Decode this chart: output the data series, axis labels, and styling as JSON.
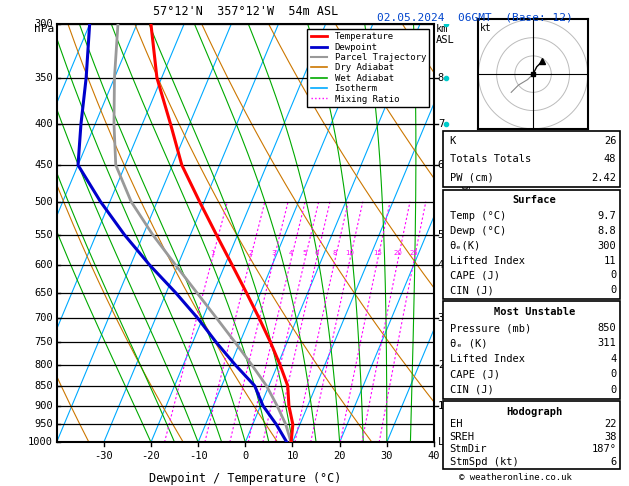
{
  "title_left": "57°12'N  357°12'W  54m ASL",
  "title_right": "02.05.2024  06GMT  (Base: 12)",
  "xlabel": "Dewpoint / Temperature (°C)",
  "ylabel_left": "hPa",
  "ylabel_right_km": "km\nASL",
  "pressure_levels": [
    300,
    350,
    400,
    450,
    500,
    550,
    600,
    650,
    700,
    750,
    800,
    850,
    900,
    950,
    1000
  ],
  "temp_ticks": [
    -30,
    -20,
    -10,
    0,
    10,
    20,
    30,
    40
  ],
  "km_ticks": [
    "8",
    "7",
    "6",
    "5",
    "4",
    "3",
    "2",
    "1"
  ],
  "km_pressures": [
    350,
    400,
    450,
    550,
    600,
    700,
    800,
    900
  ],
  "mixing_ratio_values": [
    1,
    2,
    3,
    4,
    5,
    6,
    8,
    10,
    15,
    20,
    25
  ],
  "temperature_profile": {
    "pressure": [
      1000,
      950,
      900,
      850,
      800,
      750,
      700,
      650,
      600,
      550,
      500,
      450,
      400,
      350,
      300
    ],
    "temp": [
      9.7,
      8.5,
      6.0,
      4.0,
      0.5,
      -3.5,
      -8.0,
      -13.0,
      -18.5,
      -24.5,
      -31.0,
      -38.0,
      -44.0,
      -51.0,
      -57.0
    ]
  },
  "dewpoint_profile": {
    "pressure": [
      1000,
      950,
      900,
      850,
      800,
      750,
      700,
      650,
      600,
      550,
      500,
      450,
      400,
      350,
      300
    ],
    "temp": [
      8.8,
      5.0,
      0.5,
      -3.0,
      -9.0,
      -15.0,
      -21.0,
      -28.0,
      -36.0,
      -44.0,
      -52.0,
      -60.0,
      -63.0,
      -66.0,
      -70.0
    ]
  },
  "parcel_profile": {
    "pressure": [
      1000,
      950,
      900,
      850,
      800,
      750,
      700,
      650,
      600,
      550,
      500,
      450,
      400,
      350,
      300
    ],
    "temp": [
      9.7,
      7.0,
      3.5,
      -0.5,
      -5.5,
      -11.0,
      -17.0,
      -23.5,
      -30.5,
      -38.0,
      -45.5,
      -52.0,
      -56.0,
      -60.0,
      -64.0
    ]
  },
  "colors": {
    "temperature": "#ff0000",
    "dewpoint": "#0000cc",
    "parcel": "#999999",
    "dry_adiabat": "#cc7700",
    "wet_adiabat": "#00aa00",
    "isotherm": "#00aaff",
    "mixing_ratio": "#ff00ff",
    "background": "#ffffff",
    "axes": "#000000"
  },
  "stats": {
    "K": 26,
    "Totals_Totals": 48,
    "PW_cm": 2.42,
    "Surface_Temp": 9.7,
    "Surface_Dewp": 8.8,
    "Surface_theta_e": 300,
    "Surface_LI": 11,
    "Surface_CAPE": 0,
    "Surface_CIN": 0,
    "MU_Pressure": 850,
    "MU_theta_e": 311,
    "MU_LI": 4,
    "MU_CAPE": 0,
    "MU_CIN": 0,
    "EH": 22,
    "SREH": 38,
    "StmDir": 187,
    "StmSpd": 6
  }
}
